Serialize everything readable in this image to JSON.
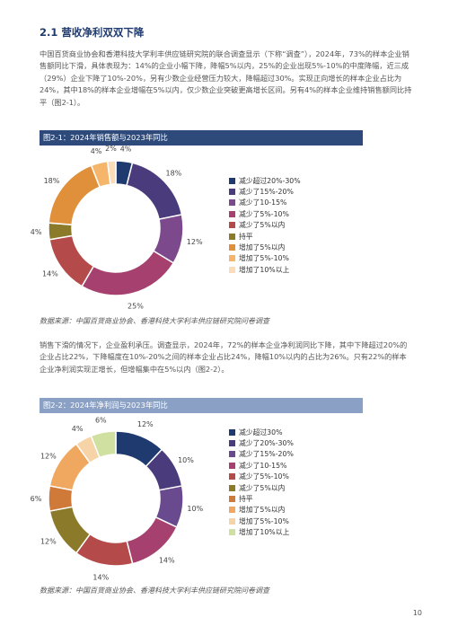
{
  "section": {
    "title": "2.1 营收净利双双下降"
  },
  "para1": "中国百货商业协会和香港科技大学利丰供应链研究院的联合调查显示（下称“调查”），2024年，73%的样本企业销售额同比下滑，具体表现为：14%的企业小幅下降，降幅5%以内，25%的企业出现5%-10%的中度降幅，近三成（29%）企业下降了10%-20%，另有少数企业经营压力较大，降幅超过30%。实现正向增长的样本企业占比为24%，其中18%的样本企业增幅在5%以内，仅少数企业突破更高增长区间。另有4%的样本企业维持销售额同比持平（图2-1）。",
  "fig1": {
    "title": "图2-1：2024年销售额与2023年同比",
    "source": "数据来源：中国百货商业协会、香港科技大学利丰供应链研究院问卷调查"
  },
  "para2": "销售下滑的情况下，企业盈利承压。调查显示，2024年，72%的样本企业净利润同比下降，其中下降超过20%的企业占比22%，下降幅度在10%-20%之间的样本企业占比24%，降幅10%以内的占比为26%。只有22%的样本企业净利润实现正增长，但增幅集中在5%以内（图2-2）。",
  "fig2": {
    "title": "图2-2：2024年净利润与2023年同比",
    "source": "数据来源：中国百货商业协会、香港科技大学利丰供应链研究院问卷调查"
  },
  "page_number": "10",
  "chart_data": [
    {
      "type": "pie",
      "title": "图2-1：2024年销售额与2023年同比",
      "donut": true,
      "legend_position": "right",
      "categories": [
        "减少超过20%-30%",
        "减少了15%-20%",
        "减少了10-15%",
        "减少了5%-10%",
        "减少了5%以内",
        "持平",
        "增加了5%以内",
        "增加了5%-10%",
        "增加了10%以上"
      ],
      "values": [
        4,
        18,
        12,
        25,
        14,
        4,
        18,
        4,
        2
      ],
      "labels": [
        "4%",
        "18%",
        "12%",
        "25%",
        "14%",
        "4%",
        "18%",
        "4%",
        "2%"
      ],
      "colors": [
        "#1f3a6e",
        "#4a3b7c",
        "#7c4a8c",
        "#a6406e",
        "#b54a4a",
        "#8a7a2a",
        "#e0903a",
        "#f5b56a",
        "#fbdcb8"
      ]
    },
    {
      "type": "pie",
      "title": "图2-2：2024年净利润与2023年同比",
      "donut": true,
      "legend_position": "right",
      "categories": [
        "减少超过30%",
        "减少了20%-30%",
        "减少了15%-20%",
        "减少了10-15%",
        "减少了5%-10%",
        "减少了5%以内",
        "持平",
        "增加了5%以内",
        "增加了5%-10%",
        "增加了10%以上"
      ],
      "values": [
        12,
        10,
        10,
        14,
        14,
        12,
        6,
        12,
        4,
        6
      ],
      "labels": [
        "12%",
        "10%",
        "10%",
        "14%",
        "14%",
        "12%",
        "6%",
        "12%",
        "4%",
        "6%"
      ],
      "colors": [
        "#1f3a6e",
        "#4a3b7c",
        "#6a4a8e",
        "#a6406e",
        "#b54a4a",
        "#8a7a2a",
        "#d07a3a",
        "#f0a860",
        "#f7d3a8",
        "#cfe0a0"
      ]
    }
  ]
}
